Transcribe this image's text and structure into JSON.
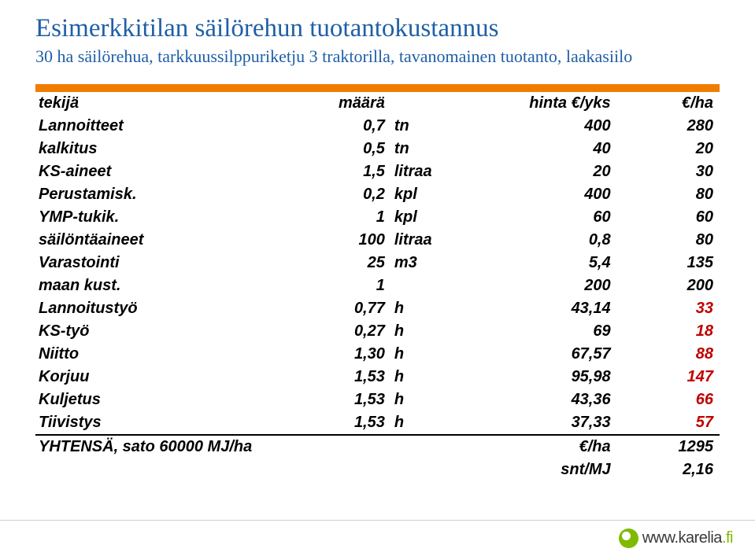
{
  "title": "Esimerkkitilan säilörehun tuotantokustannus",
  "subtitle": "30 ha säilörehua, tarkkuussilppuriketju 3 traktorilla, tavanomainen tuotanto, laakasiilo",
  "colors": {
    "title": "#1f5fa6",
    "header_bar": "#f07d00",
    "text": "#000000",
    "highlight": "#c00000",
    "logo_green": "#7fba00",
    "background": "#ffffff"
  },
  "table": {
    "columns": [
      "tekijä",
      "määrä",
      "",
      "hinta €/yks",
      "€/ha"
    ],
    "rows": [
      [
        "Lannoitteet",
        "0,7",
        "tn",
        "400",
        "280"
      ],
      [
        "kalkitus",
        "0,5",
        "tn",
        "40",
        "20"
      ],
      [
        "KS-aineet",
        "1,5",
        "litraa",
        "20",
        "30"
      ],
      [
        "Perustamisk.",
        "0,2",
        "kpl",
        "400",
        "80"
      ],
      [
        "YMP-tukik.",
        "1",
        "kpl",
        "60",
        "60"
      ],
      [
        "säilöntäaineet",
        "100",
        "litraa",
        "0,8",
        "80"
      ],
      [
        "Varastointi",
        "25",
        "m3",
        "5,4",
        "135"
      ],
      [
        "maan kust.",
        "1",
        "",
        "200",
        "200"
      ],
      [
        "Lannoitustyö",
        "0,77",
        "h",
        "43,14",
        "33"
      ],
      [
        "KS-työ",
        "0,27",
        "h",
        "69",
        "18"
      ],
      [
        "Niitto",
        "1,30",
        "h",
        "67,57",
        "88"
      ],
      [
        "Korjuu",
        "1,53",
        "h",
        "95,98",
        "147"
      ],
      [
        "Kuljetus",
        "1,53",
        "h",
        "43,36",
        "66"
      ],
      [
        "Tiivistys",
        "1,53",
        "h",
        "37,33",
        "57"
      ]
    ],
    "total": {
      "label": "YHTENSÄ, sato 60000 MJ/ha",
      "unit": "€/ha",
      "value": "1295"
    },
    "snt": {
      "unit": "snt/MJ",
      "value": "2,16"
    }
  },
  "footer": {
    "logo_text_prefix": "www.",
    "logo_text_main": "karelia",
    "logo_text_suffix": ".fi"
  }
}
